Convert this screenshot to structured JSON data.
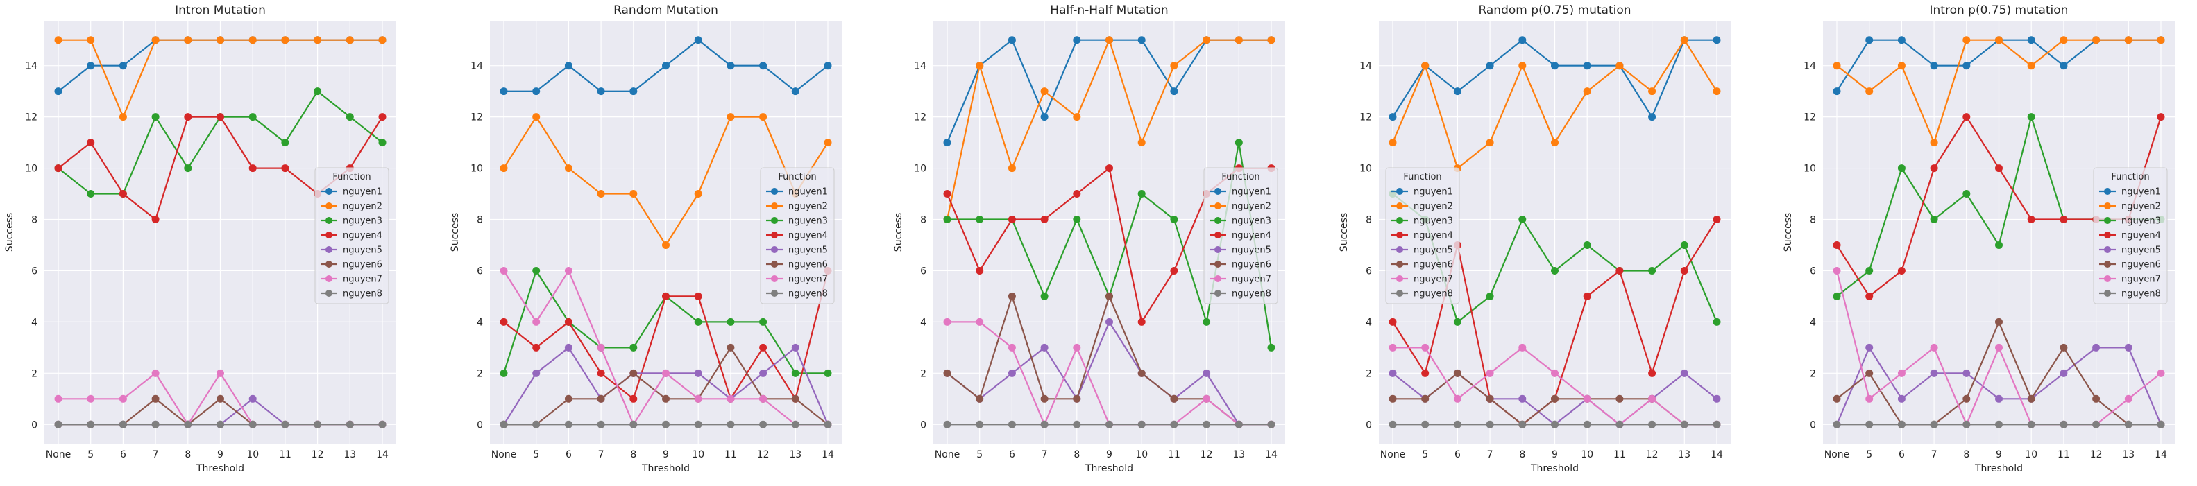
{
  "colors": {
    "nguyen1": "#1f77b4",
    "nguyen2": "#ff7f0e",
    "nguyen3": "#2ca02c",
    "nguyen4": "#d62728",
    "nguyen5": "#9467bd",
    "nguyen6": "#8c564b",
    "nguyen7": "#e377c2",
    "nguyen8": "#7f7f7f",
    "axes_background": "#eaeaf2",
    "grid": "#ffffff"
  },
  "chart_data": [
    {
      "type": "line",
      "title": "Intron Mutation",
      "xlabel": "Threshold",
      "ylabel": "Success",
      "categories": [
        "None",
        "5",
        "6",
        "7",
        "8",
        "9",
        "10",
        "11",
        "12",
        "13",
        "14"
      ],
      "yticks": [
        0,
        2,
        4,
        6,
        8,
        10,
        12,
        14
      ],
      "ylim": [
        -0.75,
        15.75
      ],
      "grid": true,
      "legend": {
        "title": "Function",
        "placement": "center-right"
      },
      "series": [
        {
          "name": "nguyen1",
          "values": [
            13,
            14,
            14,
            15,
            15,
            15,
            15,
            15,
            15,
            15,
            15
          ]
        },
        {
          "name": "nguyen2",
          "values": [
            15,
            15,
            12,
            15,
            15,
            15,
            15,
            15,
            15,
            15,
            15
          ]
        },
        {
          "name": "nguyen3",
          "values": [
            10,
            9,
            9,
            12,
            10,
            12,
            12,
            11,
            13,
            12,
            11
          ]
        },
        {
          "name": "nguyen4",
          "values": [
            10,
            11,
            9,
            8,
            12,
            12,
            10,
            10,
            9,
            10,
            12
          ]
        },
        {
          "name": "nguyen5",
          "values": [
            0,
            0,
            0,
            0,
            0,
            0,
            1,
            0,
            0,
            0,
            0
          ]
        },
        {
          "name": "nguyen6",
          "values": [
            0,
            0,
            0,
            1,
            0,
            1,
            0,
            0,
            0,
            0,
            0
          ]
        },
        {
          "name": "nguyen7",
          "values": [
            1,
            1,
            1,
            2,
            0,
            2,
            0,
            0,
            0,
            0,
            0
          ]
        },
        {
          "name": "nguyen8",
          "values": [
            0,
            0,
            0,
            0,
            0,
            0,
            0,
            0,
            0,
            0,
            0
          ]
        }
      ]
    },
    {
      "type": "line",
      "title": "Random Mutation",
      "xlabel": "Threshold",
      "ylabel": "Success",
      "categories": [
        "None",
        "5",
        "6",
        "7",
        "8",
        "9",
        "10",
        "11",
        "12",
        "13",
        "14"
      ],
      "yticks": [
        0,
        2,
        4,
        6,
        8,
        10,
        12,
        14
      ],
      "ylim": [
        -0.75,
        15.75
      ],
      "grid": true,
      "legend": {
        "title": "Function",
        "placement": "center-right"
      },
      "series": [
        {
          "name": "nguyen1",
          "values": [
            13,
            13,
            14,
            13,
            13,
            14,
            15,
            14,
            14,
            13,
            14
          ]
        },
        {
          "name": "nguyen2",
          "values": [
            10,
            12,
            10,
            9,
            9,
            7,
            9,
            12,
            12,
            9,
            11
          ]
        },
        {
          "name": "nguyen3",
          "values": [
            2,
            6,
            4,
            3,
            3,
            5,
            4,
            4,
            4,
            2,
            2
          ]
        },
        {
          "name": "nguyen4",
          "values": [
            4,
            3,
            4,
            2,
            1,
            5,
            5,
            1,
            3,
            1,
            6
          ]
        },
        {
          "name": "nguyen5",
          "values": [
            0,
            2,
            3,
            1,
            2,
            2,
            2,
            1,
            2,
            3,
            0
          ]
        },
        {
          "name": "nguyen6",
          "values": [
            0,
            0,
            1,
            1,
            2,
            1,
            1,
            3,
            1,
            1,
            0
          ]
        },
        {
          "name": "nguyen7",
          "values": [
            6,
            4,
            6,
            3,
            0,
            2,
            1,
            1,
            1,
            0,
            0
          ]
        },
        {
          "name": "nguyen8",
          "values": [
            0,
            0,
            0,
            0,
            0,
            0,
            0,
            0,
            0,
            0,
            0
          ]
        }
      ]
    },
    {
      "type": "line",
      "title": "Half-n-Half Mutation",
      "xlabel": "Threshold",
      "ylabel": "Success",
      "categories": [
        "None",
        "5",
        "6",
        "7",
        "8",
        "9",
        "10",
        "11",
        "12",
        "13",
        "14"
      ],
      "yticks": [
        0,
        2,
        4,
        6,
        8,
        10,
        12,
        14
      ],
      "ylim": [
        -0.75,
        15.75
      ],
      "grid": true,
      "legend": {
        "title": "Function",
        "placement": "center-right"
      },
      "series": [
        {
          "name": "nguyen1",
          "values": [
            11,
            14,
            15,
            12,
            15,
            15,
            15,
            13,
            15,
            15,
            15
          ]
        },
        {
          "name": "nguyen2",
          "values": [
            8,
            14,
            10,
            13,
            12,
            15,
            11,
            14,
            15,
            15,
            15
          ]
        },
        {
          "name": "nguyen3",
          "values": [
            8,
            8,
            8,
            5,
            8,
            5,
            9,
            8,
            4,
            11,
            3
          ]
        },
        {
          "name": "nguyen4",
          "values": [
            9,
            6,
            8,
            8,
            9,
            10,
            4,
            6,
            9,
            10,
            10
          ]
        },
        {
          "name": "nguyen5",
          "values": [
            2,
            1,
            2,
            3,
            1,
            4,
            2,
            1,
            2,
            0,
            0
          ]
        },
        {
          "name": "nguyen6",
          "values": [
            2,
            1,
            5,
            1,
            1,
            5,
            2,
            1,
            1,
            0,
            0
          ]
        },
        {
          "name": "nguyen7",
          "values": [
            4,
            4,
            3,
            0,
            3,
            0,
            0,
            0,
            1,
            0,
            0
          ]
        },
        {
          "name": "nguyen8",
          "values": [
            0,
            0,
            0,
            0,
            0,
            0,
            0,
            0,
            0,
            0,
            0
          ]
        }
      ]
    },
    {
      "type": "line",
      "title": "Random p(0.75) mutation",
      "xlabel": "Threshold",
      "ylabel": "Success",
      "categories": [
        "None",
        "5",
        "6",
        "7",
        "8",
        "9",
        "10",
        "11",
        "12",
        "13",
        "14"
      ],
      "yticks": [
        0,
        2,
        4,
        6,
        8,
        10,
        12,
        14
      ],
      "ylim": [
        -0.75,
        15.75
      ],
      "grid": true,
      "legend": {
        "title": "Function",
        "placement": "center-left"
      },
      "series": [
        {
          "name": "nguyen1",
          "values": [
            12,
            14,
            13,
            14,
            15,
            14,
            14,
            14,
            12,
            15,
            15
          ]
        },
        {
          "name": "nguyen2",
          "values": [
            11,
            14,
            10,
            11,
            14,
            11,
            13,
            14,
            13,
            15,
            13
          ]
        },
        {
          "name": "nguyen3",
          "values": [
            9,
            8,
            4,
            5,
            8,
            6,
            7,
            6,
            6,
            7,
            4
          ]
        },
        {
          "name": "nguyen4",
          "values": [
            4,
            2,
            7,
            1,
            0,
            1,
            5,
            6,
            2,
            6,
            8
          ]
        },
        {
          "name": "nguyen5",
          "values": [
            2,
            1,
            2,
            1,
            1,
            0,
            1,
            0,
            1,
            2,
            1
          ]
        },
        {
          "name": "nguyen6",
          "values": [
            1,
            1,
            2,
            1,
            0,
            1,
            1,
            1,
            1,
            0,
            0
          ]
        },
        {
          "name": "nguyen7",
          "values": [
            3,
            3,
            1,
            2,
            3,
            2,
            1,
            0,
            1,
            0,
            0
          ]
        },
        {
          "name": "nguyen8",
          "values": [
            0,
            0,
            0,
            0,
            0,
            0,
            0,
            0,
            0,
            0,
            0
          ]
        }
      ]
    },
    {
      "type": "line",
      "title": "Intron p(0.75) mutation",
      "xlabel": "Threshold",
      "ylabel": "Success",
      "categories": [
        "None",
        "5",
        "6",
        "7",
        "8",
        "9",
        "10",
        "11",
        "12",
        "13",
        "14"
      ],
      "yticks": [
        0,
        2,
        4,
        6,
        8,
        10,
        12,
        14
      ],
      "ylim": [
        -0.75,
        15.75
      ],
      "grid": true,
      "legend": {
        "title": "Function",
        "placement": "center-right"
      },
      "series": [
        {
          "name": "nguyen1",
          "values": [
            13,
            15,
            15,
            14,
            14,
            15,
            15,
            14,
            15,
            15,
            15
          ]
        },
        {
          "name": "nguyen2",
          "values": [
            14,
            13,
            14,
            11,
            15,
            15,
            14,
            15,
            15,
            15,
            15
          ]
        },
        {
          "name": "nguyen3",
          "values": [
            5,
            6,
            10,
            8,
            9,
            7,
            12,
            8,
            8,
            8,
            8
          ]
        },
        {
          "name": "nguyen4",
          "values": [
            7,
            5,
            6,
            10,
            12,
            10,
            8,
            8,
            8,
            8,
            12
          ]
        },
        {
          "name": "nguyen5",
          "values": [
            0,
            3,
            1,
            2,
            2,
            1,
            1,
            2,
            3,
            3,
            0
          ]
        },
        {
          "name": "nguyen6",
          "values": [
            1,
            2,
            0,
            0,
            1,
            4,
            1,
            3,
            1,
            0,
            0
          ]
        },
        {
          "name": "nguyen7",
          "values": [
            6,
            1,
            2,
            3,
            0,
            3,
            0,
            0,
            0,
            1,
            2
          ]
        },
        {
          "name": "nguyen8",
          "values": [
            0,
            0,
            0,
            0,
            0,
            0,
            0,
            0,
            0,
            0,
            0
          ]
        }
      ]
    }
  ]
}
